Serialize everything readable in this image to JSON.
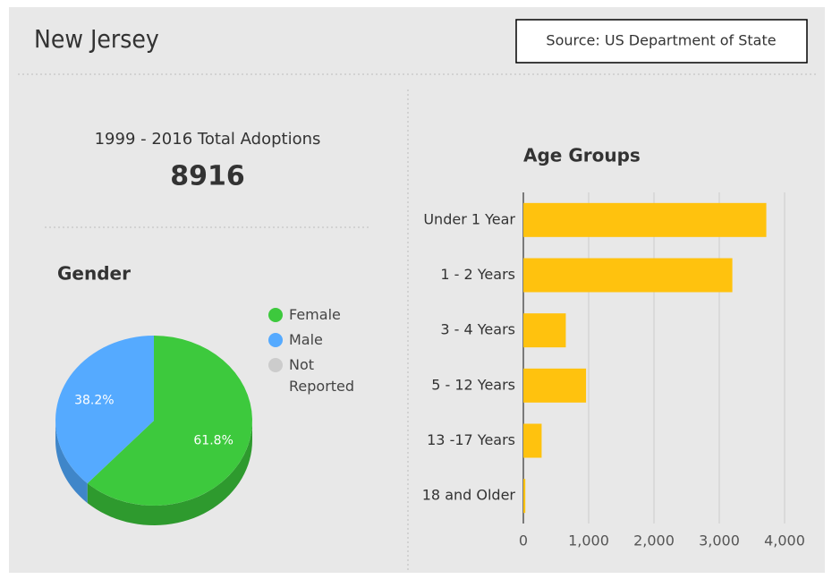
{
  "header": {
    "title": "New Jersey",
    "source": "Source: US Department of State"
  },
  "summary": {
    "label": "1999 - 2016 Total Adoptions",
    "value": 8916
  },
  "chart_data": [
    {
      "type": "pie",
      "title": "Gender",
      "categories": [
        "Female",
        "Male",
        "Not Reported"
      ],
      "values": [
        61.8,
        38.2,
        0
      ],
      "value_labels": [
        "61.8%",
        "38.2%",
        null
      ],
      "colors": [
        "#3dc93d",
        "#55aaff",
        "#cccccc"
      ],
      "side_colors": [
        "#2e9a2e",
        "#3f86c9",
        "#aaaaaa"
      ]
    },
    {
      "type": "hbar",
      "title": "Age Groups",
      "categories": [
        "Under 1 Year",
        "1 - 2 Years",
        "3 - 4 Years",
        "5 - 12 Years",
        "13 -17 Years",
        "18 and Older"
      ],
      "values": [
        3720,
        3200,
        650,
        960,
        280,
        30
      ],
      "color": "#ffc20e",
      "xlim": [
        0,
        4000
      ],
      "xticks": [
        0,
        {
          "value": 1000,
          "label": "1,000"
        },
        {
          "value": 2000,
          "label": "2,000"
        },
        {
          "value": 3000,
          "label": "3,000"
        },
        {
          "value": 4000,
          "label": "4,000"
        }
      ],
      "grid": true
    }
  ]
}
